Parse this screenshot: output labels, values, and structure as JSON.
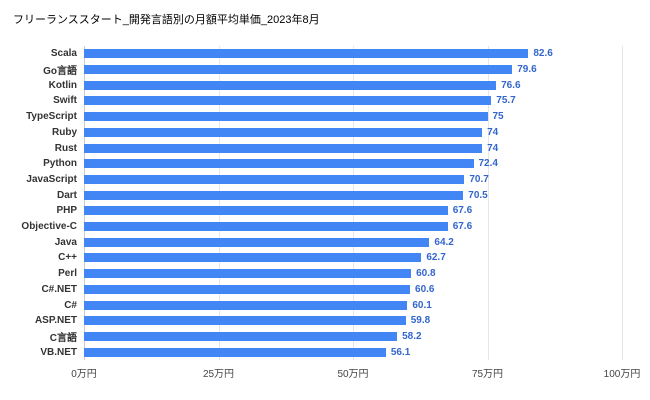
{
  "title": "フリーランススタート_開発言語別の月額平均単価_2023年8月",
  "colors": {
    "bar": "#4285f4",
    "value_label": "#3366cc",
    "category_label": "#333333",
    "gridline": "#e6e6e6",
    "baseline": "#cccccc",
    "tick_label": "#444444",
    "background": "#ffffff"
  },
  "chart_data": {
    "type": "bar",
    "orientation": "horizontal",
    "title": "フリーランススタート_開発言語別の月額平均単価_2023年8月",
    "xlabel": "",
    "ylabel": "",
    "xlim": [
      0,
      100
    ],
    "grid": true,
    "legend": "none",
    "x_tick_labels": [
      "0万円",
      "25万円",
      "50万円",
      "75万円",
      "100万円"
    ],
    "x_tick_values": [
      0,
      25,
      50,
      75,
      100
    ],
    "categories": [
      "Scala",
      "Go言語",
      "Kotlin",
      "Swift",
      "TypeScript",
      "Ruby",
      "Rust",
      "Python",
      "JavaScript",
      "Dart",
      "PHP",
      "Objective-C",
      "Java",
      "C++",
      "Perl",
      "C#.NET",
      "C#",
      "ASP.NET",
      "C言語",
      "VB.NET"
    ],
    "values": [
      82.6,
      79.6,
      76.6,
      75.7,
      75,
      74,
      74,
      72.4,
      70.7,
      70.5,
      67.6,
      67.6,
      64.2,
      62.7,
      60.8,
      60.6,
      60.1,
      59.8,
      58.2,
      56.1
    ],
    "unit": "万円"
  }
}
